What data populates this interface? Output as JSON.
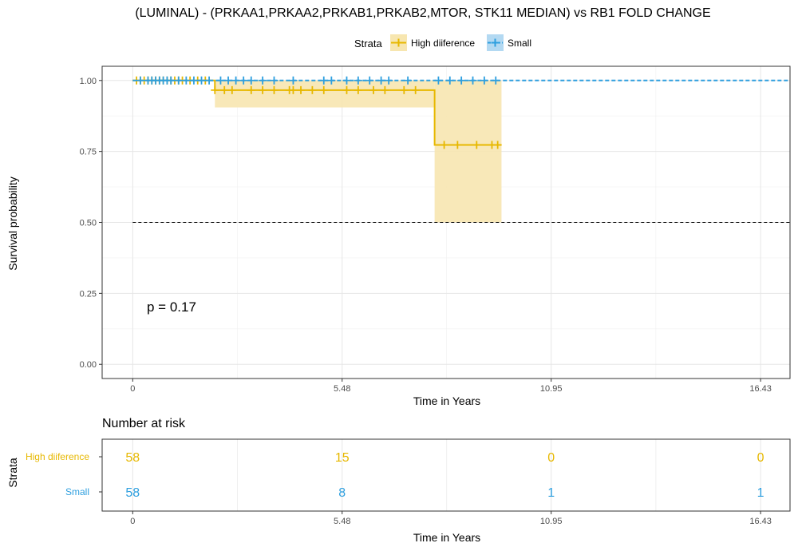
{
  "chart_data": {
    "type": "line",
    "subtype": "kaplan-meier",
    "title": "(LUMINAL) - (PRKAA1,PRKAA2,PRKAB1,PRKAB2,MTOR, STK11 MEDIAN) vs RB1 FOLD CHANGE",
    "legend": {
      "title": "Strata",
      "placement": "top",
      "entries": [
        "High diiference",
        "Small"
      ]
    },
    "xlabel": "Time in Years",
    "ylabel": "Survival probability",
    "xlim": [
      -0.8,
      17.2
    ],
    "ylim": [
      -0.05,
      1.05
    ],
    "x_ticks": [
      0,
      5.48,
      10.95,
      16.43
    ],
    "x_tick_labels": [
      "0",
      "5.48",
      "10.95",
      "16.43"
    ],
    "y_ticks": [
      0,
      0.25,
      0.5,
      0.75,
      1.0
    ],
    "y_tick_labels": [
      "0.00",
      "0.25",
      "0.50",
      "0.75",
      "1.00"
    ],
    "grid": true,
    "median_line": 0.5,
    "p_value": "p = 0.17",
    "colors": {
      "high": "#E7B800",
      "small": "#2E9FDF",
      "band_high": "#F7E6B0"
    },
    "series": [
      {
        "name": "High diiference",
        "color": "#E7B800",
        "dash": false,
        "step_x": [
          0,
          2.15,
          2.15,
          7.9,
          7.9,
          9.65
        ],
        "step_y": [
          1.0,
          1.0,
          0.966,
          0.966,
          0.773,
          0.773
        ],
        "ci_band": [
          {
            "x0": 2.15,
            "x1": 7.9,
            "lower": 0.905,
            "upper": 1.0
          },
          {
            "x0": 7.9,
            "x1": 9.65,
            "lower": 0.5,
            "upper": 1.0
          }
        ],
        "censor_x": [
          0.1,
          0.2,
          0.3,
          0.4,
          0.5,
          0.6,
          0.7,
          0.8,
          0.9,
          1.0,
          1.1,
          1.2,
          1.3,
          1.5,
          1.7,
          1.9,
          2.15,
          2.4,
          2.6,
          3.1,
          3.4,
          3.7,
          4.1,
          4.2,
          4.4,
          4.7,
          5.0,
          5.6,
          5.9,
          6.3,
          6.6,
          7.1,
          7.4,
          8.15,
          8.5,
          9.0,
          9.4,
          9.55
        ],
        "censor_y": [
          1.0,
          1.0,
          1.0,
          1.0,
          1.0,
          1.0,
          1.0,
          1.0,
          1.0,
          1.0,
          1.0,
          1.0,
          1.0,
          1.0,
          1.0,
          1.0,
          0.966,
          0.966,
          0.966,
          0.966,
          0.966,
          0.966,
          0.966,
          0.966,
          0.966,
          0.966,
          0.966,
          0.966,
          0.966,
          0.966,
          0.966,
          0.966,
          0.966,
          0.773,
          0.773,
          0.773,
          0.773,
          0.773
        ]
      },
      {
        "name": "Small",
        "color": "#2E9FDF",
        "dash": true,
        "step_x": [
          0,
          17.2
        ],
        "step_y": [
          1.0,
          1.0
        ],
        "censor_x": [
          0.2,
          0.4,
          0.5,
          0.6,
          0.7,
          0.8,
          0.9,
          1.0,
          1.2,
          1.4,
          1.6,
          1.8,
          2.0,
          2.3,
          2.5,
          2.7,
          2.9,
          3.1,
          3.4,
          3.7,
          4.2,
          5.0,
          5.2,
          5.6,
          5.9,
          6.2,
          6.5,
          6.7,
          7.2,
          8.0,
          8.3,
          8.6,
          8.9,
          9.2,
          9.5
        ],
        "censor_y": [
          1.0,
          1.0,
          1.0,
          1.0,
          1.0,
          1.0,
          1.0,
          1.0,
          1.0,
          1.0,
          1.0,
          1.0,
          1.0,
          1.0,
          1.0,
          1.0,
          1.0,
          1.0,
          1.0,
          1.0,
          1.0,
          1.0,
          1.0,
          1.0,
          1.0,
          1.0,
          1.0,
          1.0,
          1.0,
          1.0,
          1.0,
          1.0,
          1.0,
          1.0,
          1.0
        ]
      }
    ],
    "risk_table": {
      "title": "Number at risk",
      "ylabel": "Strata",
      "xlabel": "Time in Years",
      "x": [
        0,
        5.48,
        10.95,
        16.43
      ],
      "x_tick_labels": [
        "0",
        "5.48",
        "10.95",
        "16.43"
      ],
      "rows": [
        {
          "name": "High diiference",
          "color": "#E7B800",
          "values": [
            "58",
            "15",
            "0",
            "0"
          ]
        },
        {
          "name": "Small",
          "color": "#2E9FDF",
          "values": [
            "58",
            "8",
            "1",
            "1"
          ]
        }
      ]
    }
  }
}
